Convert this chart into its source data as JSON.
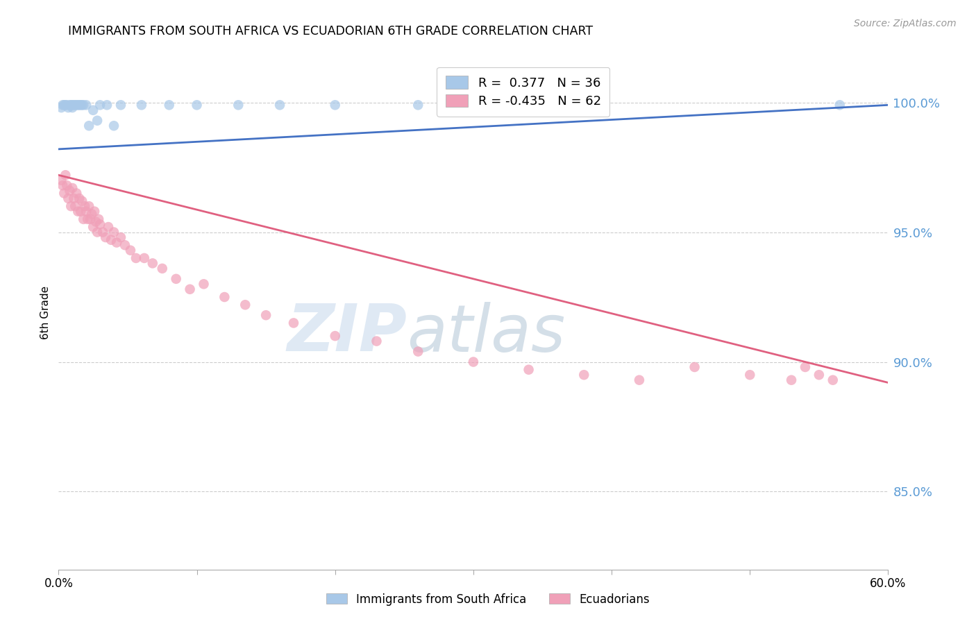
{
  "title": "IMMIGRANTS FROM SOUTH AFRICA VS ECUADORIAN 6TH GRADE CORRELATION CHART",
  "source": "Source: ZipAtlas.com",
  "ylabel": "6th Grade",
  "legend_label1": "Immigrants from South Africa",
  "legend_label2": "Ecuadorians",
  "R1": 0.377,
  "N1": 36,
  "R2": -0.435,
  "N2": 62,
  "color_blue": "#a8c8e8",
  "color_pink": "#f0a0b8",
  "line_blue": "#4472c4",
  "line_pink": "#e06080",
  "xlim": [
    0.0,
    0.6
  ],
  "ylim": [
    0.82,
    1.018
  ],
  "yticks": [
    0.85,
    0.9,
    0.95,
    1.0
  ],
  "ytick_labels": [
    "85.0%",
    "90.0%",
    "95.0%",
    "100.0%"
  ],
  "xticks": [
    0.0,
    0.1,
    0.2,
    0.3,
    0.4,
    0.5,
    0.6
  ],
  "xtick_labels": [
    "0.0%",
    "",
    "",
    "",
    "",
    "",
    "60.0%"
  ],
  "watermark_zip": "ZIP",
  "watermark_atlas": "atlas",
  "blue_scatter_x": [
    0.002,
    0.003,
    0.004,
    0.005,
    0.006,
    0.007,
    0.008,
    0.009,
    0.01,
    0.01,
    0.011,
    0.012,
    0.013,
    0.014,
    0.015,
    0.016,
    0.017,
    0.018,
    0.02,
    0.022,
    0.025,
    0.028,
    0.03,
    0.035,
    0.04,
    0.045,
    0.06,
    0.08,
    0.1,
    0.13,
    0.16,
    0.2,
    0.26,
    0.3,
    0.31,
    0.565
  ],
  "blue_scatter_y": [
    0.998,
    0.999,
    0.999,
    0.999,
    0.999,
    0.998,
    0.999,
    0.999,
    0.999,
    0.998,
    0.999,
    0.999,
    0.999,
    0.999,
    0.999,
    0.999,
    0.999,
    0.999,
    0.999,
    0.991,
    0.997,
    0.993,
    0.999,
    0.999,
    0.991,
    0.999,
    0.999,
    0.999,
    0.999,
    0.999,
    0.999,
    0.999,
    0.999,
    0.999,
    0.999,
    0.999
  ],
  "pink_scatter_x": [
    0.002,
    0.003,
    0.004,
    0.005,
    0.006,
    0.007,
    0.008,
    0.009,
    0.01,
    0.011,
    0.012,
    0.013,
    0.014,
    0.015,
    0.016,
    0.017,
    0.018,
    0.019,
    0.02,
    0.021,
    0.022,
    0.023,
    0.024,
    0.025,
    0.026,
    0.027,
    0.028,
    0.029,
    0.03,
    0.032,
    0.034,
    0.036,
    0.038,
    0.04,
    0.042,
    0.045,
    0.048,
    0.052,
    0.056,
    0.062,
    0.068,
    0.075,
    0.085,
    0.095,
    0.105,
    0.12,
    0.135,
    0.15,
    0.17,
    0.2,
    0.23,
    0.26,
    0.3,
    0.34,
    0.38,
    0.42,
    0.46,
    0.5,
    0.53,
    0.54,
    0.55,
    0.56
  ],
  "pink_scatter_y": [
    0.97,
    0.968,
    0.965,
    0.972,
    0.968,
    0.963,
    0.966,
    0.96,
    0.967,
    0.963,
    0.96,
    0.965,
    0.958,
    0.963,
    0.958,
    0.962,
    0.955,
    0.96,
    0.958,
    0.955,
    0.96,
    0.955,
    0.957,
    0.952,
    0.958,
    0.954,
    0.95,
    0.955,
    0.953,
    0.95,
    0.948,
    0.952,
    0.947,
    0.95,
    0.946,
    0.948,
    0.945,
    0.943,
    0.94,
    0.94,
    0.938,
    0.936,
    0.932,
    0.928,
    0.93,
    0.925,
    0.922,
    0.918,
    0.915,
    0.91,
    0.908,
    0.904,
    0.9,
    0.897,
    0.895,
    0.893,
    0.898,
    0.895,
    0.893,
    0.898,
    0.895,
    0.893
  ],
  "blue_line_x": [
    0.0,
    0.6
  ],
  "blue_line_y": [
    0.982,
    0.999
  ],
  "pink_line_x": [
    0.0,
    0.6
  ],
  "pink_line_y": [
    0.972,
    0.892
  ]
}
